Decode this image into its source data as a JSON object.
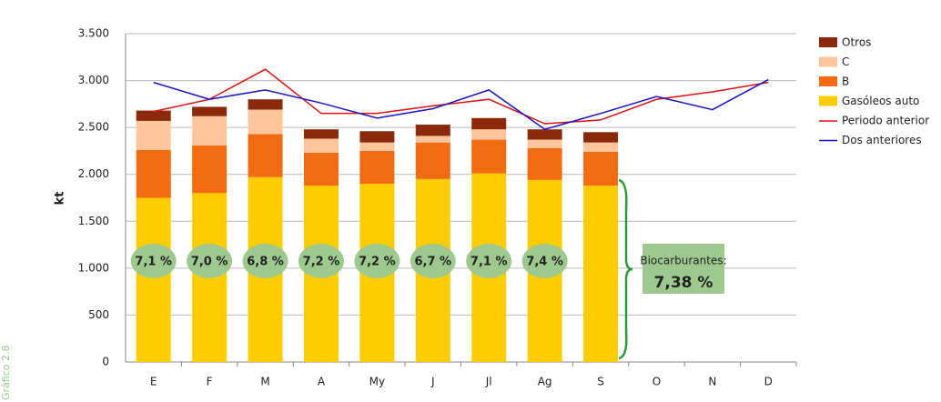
{
  "chart_data": {
    "type": "bar",
    "stacked": true,
    "side_label": "Gráfico 2.8",
    "y_label": "kt",
    "categories": [
      "E",
      "F",
      "M",
      "A",
      "My",
      "J",
      "Jl",
      "Ag",
      "S",
      "O",
      "N",
      "D"
    ],
    "series": [
      {
        "name": "Otros",
        "type": "bar",
        "color": "#8b2a0a",
        "values": [
          110,
          100,
          110,
          100,
          120,
          120,
          120,
          110,
          110,
          null,
          null,
          null
        ]
      },
      {
        "name": "C",
        "type": "bar",
        "color": "#fcc59c",
        "values": [
          310,
          310,
          260,
          150,
          90,
          70,
          110,
          90,
          100,
          null,
          null,
          null
        ]
      },
      {
        "name": "B",
        "type": "bar",
        "color": "#f26b10",
        "values": [
          510,
          510,
          460,
          350,
          350,
          390,
          360,
          340,
          360,
          null,
          null,
          null
        ]
      },
      {
        "name": "Gasóleos auto",
        "type": "bar",
        "color": "#ffcc00",
        "values": [
          1750,
          1800,
          1970,
          1880,
          1900,
          1950,
          2010,
          1940,
          1880,
          null,
          null,
          null
        ]
      },
      {
        "name": "Periodo anterior",
        "type": "line",
        "color": "#e01010",
        "values": [
          2670,
          2800,
          3120,
          2650,
          2650,
          2730,
          2800,
          2540,
          2580,
          2800,
          2880,
          2980
        ]
      },
      {
        "name": "Dos anteriores",
        "type": "line",
        "color": "#1414c8",
        "values": [
          2980,
          2800,
          2900,
          2760,
          2600,
          2700,
          2900,
          2480,
          2650,
          2830,
          2690,
          3010
        ]
      }
    ],
    "bar_annotations": [
      "7,1 %",
      "7,0 %",
      "6,8 %",
      "7,2 %",
      "7,2 %",
      "6,7 %",
      "7,1 %",
      "7,4 %"
    ],
    "box_title": "Biocarburantes:",
    "box_value": "7,38 %",
    "ylim": [
      0,
      3500
    ],
    "yticks": [
      0,
      500,
      {
        "value": 1000,
        "label": "1.000"
      },
      {
        "value": 1500,
        "label": "1.500"
      },
      {
        "value": 2000,
        "label": "2.000"
      },
      {
        "value": 2500,
        "label": "2.500"
      },
      {
        "value": 3000,
        "label": "3.000"
      },
      {
        "value": 3500,
        "label": "3.500"
      }
    ],
    "grid": true,
    "legend": "right"
  }
}
